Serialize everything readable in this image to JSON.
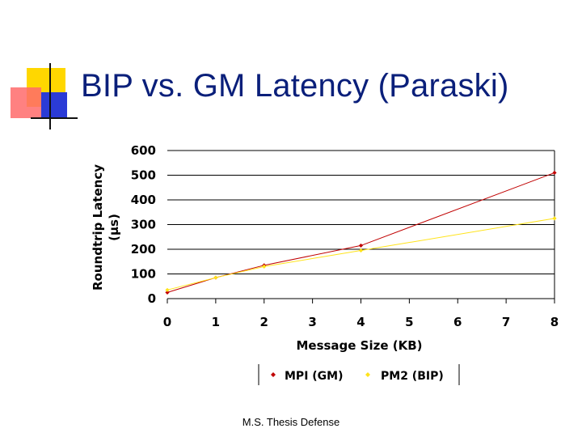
{
  "slide": {
    "title": "BIP vs. GM Latency (Paraski)",
    "footer": "M.S. Thesis Defense"
  },
  "colors": {
    "title": "#0a1f7a",
    "deco_yellow": "#ffd700",
    "deco_red": "#ff6b6b",
    "deco_blue": "#2b3bd6",
    "mpi": "#c00000",
    "pm2": "#ffe31a",
    "grid": "#000000"
  },
  "chart_data": {
    "type": "line",
    "title": "",
    "xlabel": "Message Size (KB)",
    "ylabel": "Roundtrip Latency (µs)",
    "ylabel_lines": [
      "Roundtrip Latency",
      "(µs)"
    ],
    "xlim": [
      0,
      8
    ],
    "ylim": [
      0,
      600
    ],
    "xticks": [
      "0",
      "1",
      "2",
      "3",
      "4",
      "5",
      "6",
      "7",
      "8"
    ],
    "yticks": [
      "0",
      "100",
      "200",
      "300",
      "400",
      "500",
      "600"
    ],
    "grid": "horizontal",
    "legend_position": "bottom",
    "series": [
      {
        "name": "MPI (GM)",
        "color": "#c00000",
        "x": [
          0,
          1,
          2,
          4,
          8
        ],
        "y": [
          25,
          85,
          135,
          215,
          510
        ]
      },
      {
        "name": "PM2 (BIP)",
        "color": "#ffe31a",
        "x": [
          0,
          1,
          2,
          4,
          8
        ],
        "y": [
          35,
          85,
          130,
          195,
          325
        ]
      }
    ]
  }
}
